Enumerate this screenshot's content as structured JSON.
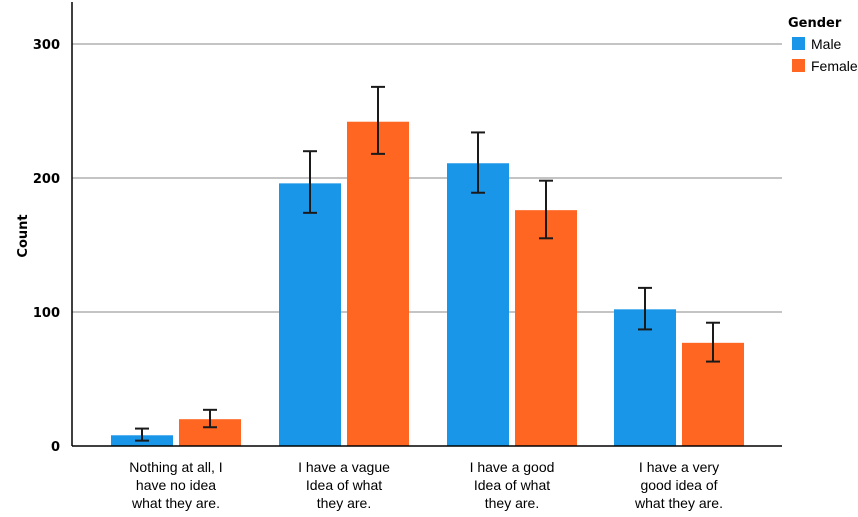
{
  "chart_data": {
    "type": "bar",
    "title": "",
    "xlabel": "",
    "ylabel": "Count",
    "ylim": [
      0,
      330
    ],
    "yticks": [
      0,
      100,
      200,
      300
    ],
    "grid": true,
    "categories": [
      [
        "Nothing at all, I",
        "have no idea",
        "what they are."
      ],
      [
        "I have a vague",
        "Idea of what",
        "they are."
      ],
      [
        "I have a good",
        "Idea of what",
        "they are."
      ],
      [
        "I have a  very",
        "good idea of",
        "what they are."
      ]
    ],
    "legend": {
      "title": "Gender",
      "position": "top-right"
    },
    "series": [
      {
        "name": "Male",
        "color": "#1a96e8",
        "values": [
          8,
          196,
          211,
          102
        ],
        "error_low": [
          4,
          174,
          189,
          87
        ],
        "error_high": [
          13,
          220,
          234,
          118
        ]
      },
      {
        "name": "Female",
        "color": "#fe6622",
        "values": [
          20,
          242,
          176,
          77
        ],
        "error_low": [
          14,
          218,
          155,
          63
        ],
        "error_high": [
          27,
          268,
          198,
          92
        ]
      }
    ]
  }
}
